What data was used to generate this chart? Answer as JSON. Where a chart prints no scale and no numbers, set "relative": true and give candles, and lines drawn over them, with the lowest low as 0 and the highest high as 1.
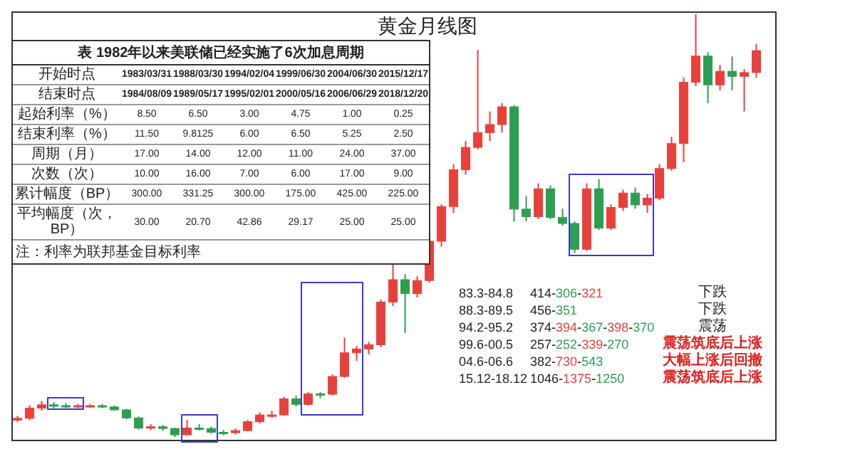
{
  "chart_data": {
    "type": "candlestick",
    "title": "黄金月线图",
    "relative": true,
    "tick_labels": false,
    "categories": [
      null,
      null,
      null,
      null,
      null,
      null,
      null,
      null,
      null,
      null,
      null,
      null,
      null,
      null,
      null,
      null,
      null,
      null,
      null,
      null,
      null,
      null,
      null,
      null,
      null,
      null,
      null,
      null,
      null,
      null,
      null,
      null,
      null,
      null,
      null,
      null,
      null,
      null,
      null,
      null,
      null,
      null,
      null,
      null,
      null,
      null,
      null,
      null,
      null,
      null,
      null,
      null,
      null,
      null,
      null,
      null,
      null,
      null,
      null,
      null,
      null,
      null
    ],
    "ohlc": [
      [
        0.04,
        0.05,
        0.035,
        0.044
      ],
      [
        0.044,
        0.075,
        0.04,
        0.068
      ],
      [
        0.068,
        0.085,
        0.062,
        0.076
      ],
      [
        0.076,
        0.082,
        0.068,
        0.074
      ],
      [
        0.074,
        0.08,
        0.068,
        0.072
      ],
      [
        0.072,
        0.078,
        0.068,
        0.074
      ],
      [
        0.074,
        0.078,
        0.07,
        0.074
      ],
      [
        0.074,
        0.078,
        0.068,
        0.071
      ],
      [
        0.071,
        0.074,
        0.062,
        0.064
      ],
      [
        0.064,
        0.066,
        0.042,
        0.045
      ],
      [
        0.045,
        0.048,
        0.018,
        0.021
      ],
      [
        0.021,
        0.03,
        0.016,
        0.024
      ],
      [
        0.024,
        0.028,
        0.014,
        0.02
      ],
      [
        0.02,
        0.022,
        0.0,
        0.005
      ],
      [
        0.005,
        0.04,
        0.003,
        0.021
      ],
      [
        0.021,
        0.03,
        0.015,
        0.02
      ],
      [
        0.02,
        0.024,
        0.008,
        0.011
      ],
      [
        0.011,
        0.016,
        0.004,
        0.01
      ],
      [
        0.01,
        0.02,
        0.006,
        0.015
      ],
      [
        0.015,
        0.04,
        0.013,
        0.036
      ],
      [
        0.036,
        0.058,
        0.032,
        0.052
      ],
      [
        0.052,
        0.062,
        0.045,
        0.052
      ],
      [
        0.052,
        0.095,
        0.05,
        0.09
      ],
      [
        0.09,
        0.098,
        0.072,
        0.077
      ],
      [
        0.077,
        0.106,
        0.074,
        0.102
      ],
      [
        0.102,
        0.106,
        0.092,
        0.101
      ],
      [
        0.101,
        0.148,
        0.098,
        0.143
      ],
      [
        0.143,
        0.235,
        0.14,
        0.199
      ],
      [
        0.199,
        0.215,
        0.18,
        0.208
      ],
      [
        0.208,
        0.225,
        0.195,
        0.218
      ],
      [
        0.218,
        0.325,
        0.212,
        0.319
      ],
      [
        0.319,
        0.41,
        0.31,
        0.372
      ],
      [
        0.372,
        0.385,
        0.246,
        0.339
      ],
      [
        0.339,
        0.38,
        0.33,
        0.37
      ],
      [
        0.37,
        0.475,
        0.365,
        0.463
      ],
      [
        0.463,
        0.55,
        0.45,
        0.545
      ],
      [
        0.545,
        0.645,
        0.53,
        0.632
      ],
      [
        0.632,
        0.7,
        0.62,
        0.685
      ],
      [
        0.685,
        0.915,
        0.68,
        0.72
      ],
      [
        0.72,
        0.77,
        0.7,
        0.739
      ],
      [
        0.739,
        0.79,
        0.72,
        0.781
      ],
      [
        0.781,
        0.785,
        0.509,
        0.539
      ],
      [
        0.539,
        0.57,
        0.51,
        0.521
      ],
      [
        0.521,
        0.6,
        0.515,
        0.587
      ],
      [
        0.587,
        0.595,
        0.515,
        0.519
      ],
      [
        0.519,
        0.54,
        0.5,
        0.505
      ],
      [
        0.505,
        0.51,
        0.435,
        0.444
      ],
      [
        0.444,
        0.6,
        0.44,
        0.587
      ],
      [
        0.587,
        0.61,
        0.49,
        0.494
      ],
      [
        0.494,
        0.55,
        0.49,
        0.543
      ],
      [
        0.543,
        0.585,
        0.535,
        0.577
      ],
      [
        0.577,
        0.59,
        0.54,
        0.549
      ],
      [
        0.549,
        0.575,
        0.53,
        0.565
      ],
      [
        0.565,
        0.645,
        0.56,
        0.635
      ],
      [
        0.635,
        0.71,
        0.63,
        0.694
      ],
      [
        0.694,
        0.85,
        0.65,
        0.839
      ],
      [
        0.839,
        1.0,
        0.83,
        0.901
      ],
      [
        0.901,
        0.91,
        0.79,
        0.833
      ],
      [
        0.833,
        0.88,
        0.82,
        0.865
      ],
      [
        0.865,
        0.9,
        0.82,
        0.853
      ],
      [
        0.853,
        0.87,
        0.77,
        0.862
      ],
      [
        0.862,
        0.93,
        0.85,
        0.914
      ]
    ],
    "colors": [
      "#e8413c",
      "#e8413c",
      "#e8413c",
      "#2e9e52",
      "#2e9e52",
      "#e8413c",
      "#e8413c",
      "#2e9e52",
      "#2e9e52",
      "#2e9e52",
      "#2e9e52",
      "#e8413c",
      "#2e9e52",
      "#2e9e52",
      "#e8413c",
      "#2e9e52",
      "#2e9e52",
      "#2e9e52",
      "#e8413c",
      "#e8413c",
      "#e8413c",
      "#e8413c",
      "#e8413c",
      "#2e9e52",
      "#e8413c",
      "#2e9e52",
      "#e8413c",
      "#e8413c",
      "#e8413c",
      "#e8413c",
      "#e8413c",
      "#e8413c",
      "#2e9e52",
      "#e8413c",
      "#e8413c",
      "#e8413c",
      "#e8413c",
      "#e8413c",
      "#e8413c",
      "#e8413c",
      "#e8413c",
      "#2e9e52",
      "#2e9e52",
      "#e8413c",
      "#2e9e52",
      "#2e9e52",
      "#2e9e52",
      "#e8413c",
      "#2e9e52",
      "#e8413c",
      "#e8413c",
      "#2e9e52",
      "#e8413c",
      "#e8413c",
      "#e8413c",
      "#e8413c",
      "#e8413c",
      "#2e9e52",
      "#e8413c",
      "#2e9e52",
      "#e8413c",
      "#e8413c"
    ],
    "annotations": [
      "表 1982年以来美联储已经实施了6次加息周期",
      "开始时点",
      "1983/03/31",
      "1988/03/30",
      "1994/02/04",
      "1999/06/30",
      "2004/06/30",
      "2015/12/17",
      "结束时点",
      "1984/08/09",
      "1989/05/17",
      "1995/02/01",
      "2000/05/16",
      "2006/06/29",
      "2018/12/20",
      "起始利率（%）",
      "8.50",
      "6.50",
      "3.00",
      "4.75",
      "1.00",
      "0.25",
      "结束利率（%）",
      "11.50",
      "9.8125",
      "6.00",
      "6.50",
      "5.25",
      "2.50",
      "周期（月）",
      "17.00",
      "14.00",
      "12.00",
      "11.00",
      "24.00",
      "37.00",
      "次数（次）",
      "10.00",
      "16.00",
      "7.00",
      "6.00",
      "17.00",
      "9.00",
      "累计幅度（BP）",
      "300.00",
      "331.25",
      "300.00",
      "175.00",
      "425.00",
      "225.00",
      "平均幅度（次，BP）",
      "30.00",
      "20.70",
      "42.86",
      "29.17",
      "25.00",
      "25.00",
      "注：利率为联邦基金目标利率",
      "83.3-84.8",
      "414-306-321",
      "下跌",
      "88.3-89.5",
      "456-351",
      "下跌",
      "94.2-95.2",
      "374-394-367-398-370",
      "震荡",
      "99.6-00.5",
      "257-252-339-270",
      "震荡筑底后上涨",
      "04.6-06.6",
      "382-730-543",
      "大幅上涨后回撤",
      "15.12-18.12",
      "1046-1375-1250",
      "震荡筑底后上涨"
    ]
  }
}
